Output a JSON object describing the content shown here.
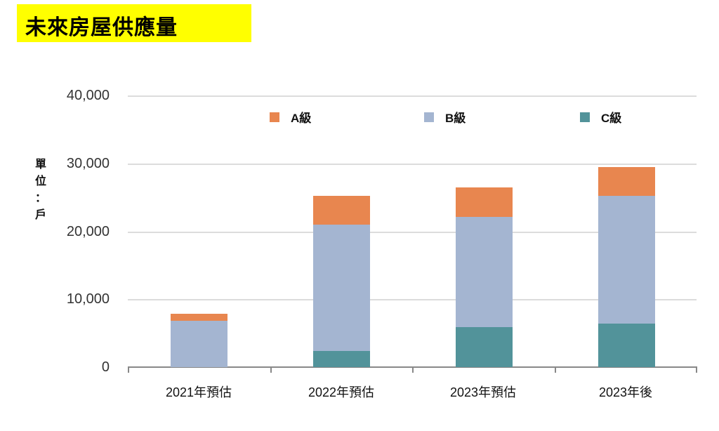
{
  "title": "未來房屋供應量",
  "colors": {
    "A": "#e8864f",
    "B": "#a4b5d1",
    "C": "#52939a",
    "title_bg": "#ffff00"
  },
  "y_axis": {
    "label": [
      "單",
      "位",
      "：",
      "戶"
    ],
    "ticks": [
      "40,000",
      "30,000",
      "20,000",
      "10,000",
      "0"
    ]
  },
  "legend": [
    {
      "label": "A級",
      "color": "#e8864f"
    },
    {
      "label": "B級",
      "color": "#a4b5d1"
    },
    {
      "label": "C級",
      "color": "#52939a"
    }
  ],
  "chart_data": {
    "type": "bar",
    "stacked": true,
    "title": "未來房屋供應量",
    "xlabel": "",
    "ylabel": "單位：戶",
    "ylim": [
      0,
      40000
    ],
    "yticks": [
      0,
      10000,
      20000,
      30000,
      40000
    ],
    "grid": true,
    "legend_position": "top",
    "categories": [
      "2021年預估",
      "2022年預估",
      "2023年預估",
      "2023年後"
    ],
    "series": [
      {
        "name": "C級",
        "values": [
          0,
          2400,
          5900,
          6400
        ]
      },
      {
        "name": "B級",
        "values": [
          6850,
          18600,
          16300,
          18900
        ]
      },
      {
        "name": "A級",
        "values": [
          1050,
          4300,
          4300,
          4200
        ]
      }
    ]
  }
}
